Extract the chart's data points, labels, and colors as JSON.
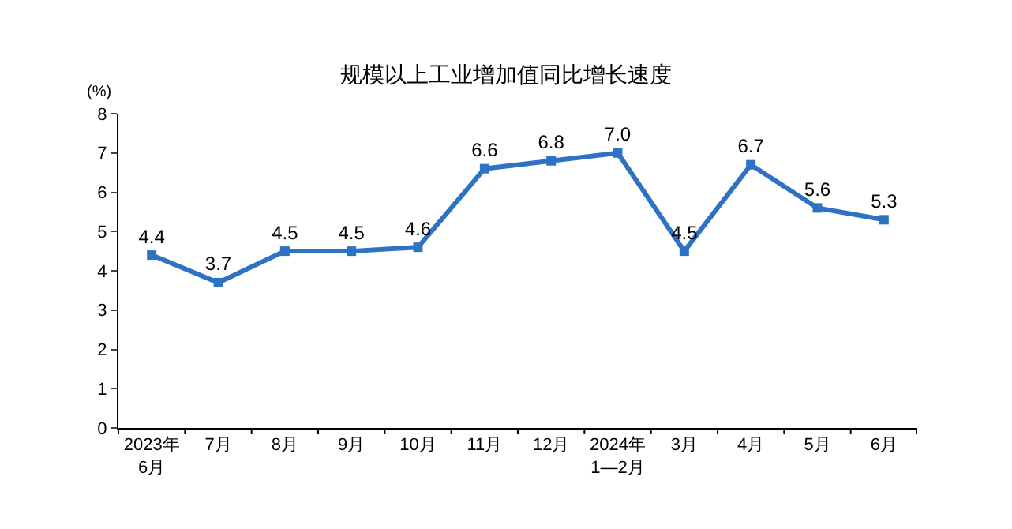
{
  "chart_data": {
    "type": "line",
    "title": "规模以上工业增加值同比增长速度",
    "ylabel": "(%)",
    "categories": [
      "2023年\n6月",
      "7月",
      "8月",
      "9月",
      "10月",
      "11月",
      "12月",
      "2024年\n1—2月",
      "3月",
      "4月",
      "5月",
      "6月"
    ],
    "values": [
      4.4,
      3.7,
      4.5,
      4.5,
      4.6,
      6.6,
      6.8,
      7.0,
      4.5,
      6.7,
      5.6,
      5.3
    ],
    "value_labels": [
      "4.4",
      "3.7",
      "4.5",
      "4.5",
      "4.6",
      "6.6",
      "6.8",
      "7.0",
      "4.5",
      "6.7",
      "5.6",
      "5.3"
    ],
    "color": "#2e72c4",
    "marker": "square",
    "line_style": "solid",
    "grid": false,
    "ylim": [
      0,
      8
    ],
    "yticks": [
      0,
      1,
      2,
      3,
      4,
      5,
      6,
      7,
      8
    ]
  }
}
